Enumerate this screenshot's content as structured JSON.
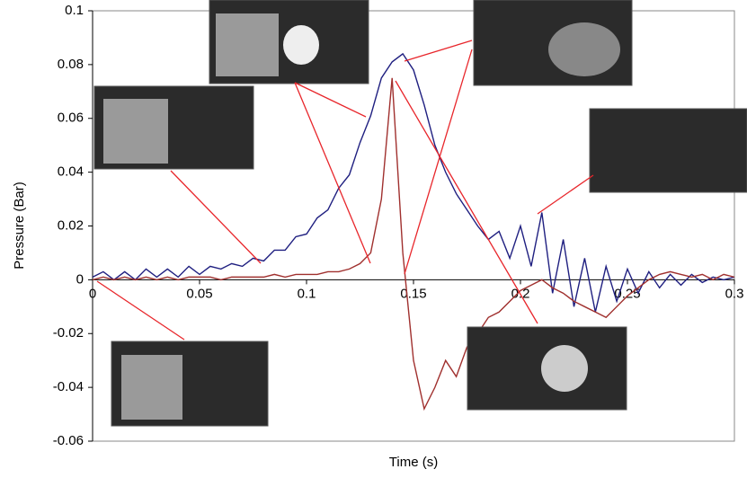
{
  "chart_data": {
    "type": "line",
    "y_label": "Pressure (Bar)",
    "x_label": "Time (s)",
    "x": [
      0,
      0.005,
      0.01,
      0.015,
      0.02,
      0.025,
      0.03,
      0.035,
      0.04,
      0.045,
      0.05,
      0.055,
      0.06,
      0.065,
      0.07,
      0.075,
      0.08,
      0.085,
      0.09,
      0.095,
      0.1,
      0.105,
      0.11,
      0.115,
      0.12,
      0.125,
      0.13,
      0.135,
      0.14,
      0.145,
      0.15,
      0.155,
      0.16,
      0.165,
      0.17,
      0.175,
      0.18,
      0.185,
      0.19,
      0.195,
      0.2,
      0.205,
      0.21,
      0.215,
      0.22,
      0.225,
      0.23,
      0.235,
      0.24,
      0.245,
      0.25,
      0.255,
      0.26,
      0.265,
      0.27,
      0.275,
      0.28,
      0.285,
      0.29,
      0.295,
      0.3
    ],
    "series": [
      {
        "color": "#1f1f80",
        "values": [
          0.001,
          0.003,
          0.0,
          0.003,
          0.0,
          0.004,
          0.001,
          0.004,
          0.001,
          0.005,
          0.002,
          0.005,
          0.004,
          0.006,
          0.005,
          0.008,
          0.007,
          0.011,
          0.011,
          0.016,
          0.017,
          0.023,
          0.026,
          0.034,
          0.039,
          0.051,
          0.061,
          0.075,
          0.081,
          0.084,
          0.078,
          0.065,
          0.05,
          0.04,
          0.032,
          0.026,
          0.02,
          0.015,
          0.018,
          0.008,
          0.02,
          0.005,
          0.025,
          -0.005,
          0.015,
          -0.01,
          0.008,
          -0.012,
          0.005,
          -0.008,
          0.004,
          -0.005,
          0.003,
          -0.003,
          0.002,
          -0.002,
          0.002,
          -0.001,
          0.001,
          0.0,
          0.001
        ]
      },
      {
        "color": "#a0302e",
        "values": [
          0.0,
          0.001,
          0.0,
          0.001,
          0.0,
          0.001,
          0.0,
          0.001,
          0.0,
          0.001,
          0.001,
          0.001,
          0.0,
          0.001,
          0.001,
          0.001,
          0.001,
          0.002,
          0.001,
          0.002,
          0.002,
          0.002,
          0.003,
          0.003,
          0.004,
          0.006,
          0.01,
          0.03,
          0.075,
          0.01,
          -0.03,
          -0.048,
          -0.04,
          -0.03,
          -0.036,
          -0.025,
          -0.02,
          -0.014,
          -0.012,
          -0.008,
          -0.004,
          -0.002,
          0.0,
          -0.003,
          -0.005,
          -0.008,
          -0.01,
          -0.012,
          -0.014,
          -0.01,
          -0.006,
          -0.003,
          0.0,
          0.002,
          0.003,
          0.002,
          0.001,
          0.002,
          0.0,
          0.002,
          0.001
        ]
      }
    ],
    "xlim": [
      0,
      0.3
    ],
    "ylim": [
      -0.06,
      0.1
    ],
    "xticks": [
      0,
      0.05,
      0.1,
      0.15,
      0.2,
      0.25,
      0.3
    ],
    "yticks": [
      -0.06,
      -0.04,
      -0.02,
      0,
      0.02,
      0.04,
      0.06,
      0.08,
      0.1
    ],
    "grid": false
  }
}
